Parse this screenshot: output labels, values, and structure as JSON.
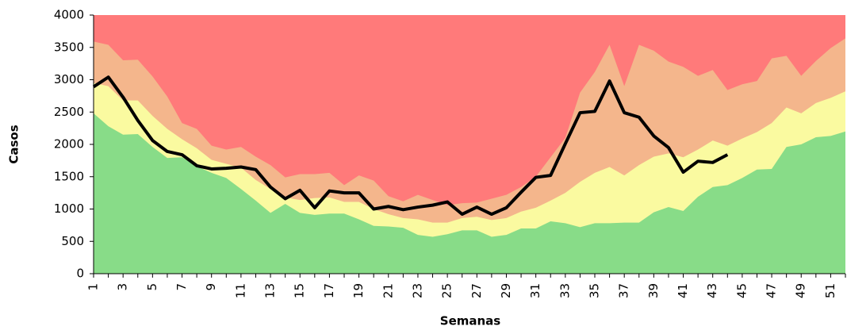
{
  "chart_data": {
    "type": "area",
    "x_label": "Semanas",
    "y_label": "Casos",
    "categories": [
      1,
      null,
      3,
      null,
      5,
      null,
      7,
      null,
      9,
      null,
      11,
      null,
      13,
      null,
      15,
      null,
      17,
      null,
      19,
      null,
      21,
      null,
      23,
      null,
      25,
      null,
      27,
      null,
      29,
      null,
      31,
      null,
      33,
      null,
      35,
      null,
      37,
      null,
      39,
      null,
      41,
      null,
      43,
      null,
      45,
      null,
      47,
      null,
      49,
      null,
      51,
      null
    ],
    "background_color": "#ff7a7a",
    "series": [
      {
        "type": "area",
        "color": "#f4b68c",
        "values": [
          3590,
          3540,
          3300,
          3310,
          3050,
          2740,
          2330,
          2240,
          1980,
          1920,
          1960,
          1810,
          1680,
          1490,
          1540,
          1540,
          1560,
          1370,
          1520,
          1440,
          1200,
          1120,
          1220,
          1140,
          1060,
          1090,
          1100,
          1160,
          1220,
          1340,
          1500,
          1800,
          2100,
          2800,
          3120,
          3540,
          2900,
          3540,
          3450,
          3280,
          3200,
          3060,
          3150,
          2840,
          2930,
          2980,
          3330,
          3370,
          3060,
          3290,
          3490,
          3640
        ]
      },
      {
        "type": "area",
        "color": "#fafaa0",
        "values": [
          2950,
          2900,
          2680,
          2680,
          2440,
          2240,
          2080,
          1940,
          1760,
          1700,
          1640,
          1450,
          1310,
          1180,
          1140,
          1170,
          1180,
          1110,
          1110,
          1000,
          920,
          860,
          840,
          790,
          790,
          860,
          880,
          830,
          860,
          960,
          1020,
          1130,
          1250,
          1420,
          1560,
          1650,
          1520,
          1680,
          1810,
          1860,
          1800,
          1920,
          2060,
          1980,
          2090,
          2190,
          2330,
          2570,
          2480,
          2640,
          2720,
          2820
        ]
      },
      {
        "type": "area",
        "color": "#88dc88",
        "values": [
          2480,
          2280,
          2150,
          2160,
          1960,
          1790,
          1800,
          1660,
          1560,
          1480,
          1310,
          1130,
          940,
          1080,
          940,
          910,
          930,
          930,
          840,
          740,
          730,
          710,
          600,
          570,
          610,
          670,
          670,
          570,
          600,
          700,
          700,
          810,
          780,
          720,
          780,
          780,
          790,
          790,
          950,
          1030,
          970,
          1190,
          1340,
          1370,
          1480,
          1610,
          1620,
          1960,
          2000,
          2110,
          2130,
          2200
        ]
      },
      {
        "type": "line",
        "color": "#000000",
        "values": [
          2890,
          3040,
          2730,
          2370,
          2060,
          1890,
          1840,
          1670,
          1620,
          1630,
          1650,
          1610,
          1340,
          1160,
          1290,
          1020,
          1280,
          1250,
          1250,
          1000,
          1040,
          990,
          1030,
          1060,
          1110,
          920,
          1030,
          920,
          1020,
          1260,
          1490,
          1520,
          2010,
          2490,
          2510,
          2980,
          2490,
          2420,
          2130,
          1950,
          1570,
          1740,
          1720,
          1840,
          null,
          null,
          null,
          null,
          null,
          null,
          null,
          null
        ]
      }
    ],
    "ylim": [
      0,
      4000
    ],
    "yticks": [
      0,
      500,
      1000,
      1500,
      2000,
      2500,
      3000,
      3500,
      4000
    ]
  }
}
